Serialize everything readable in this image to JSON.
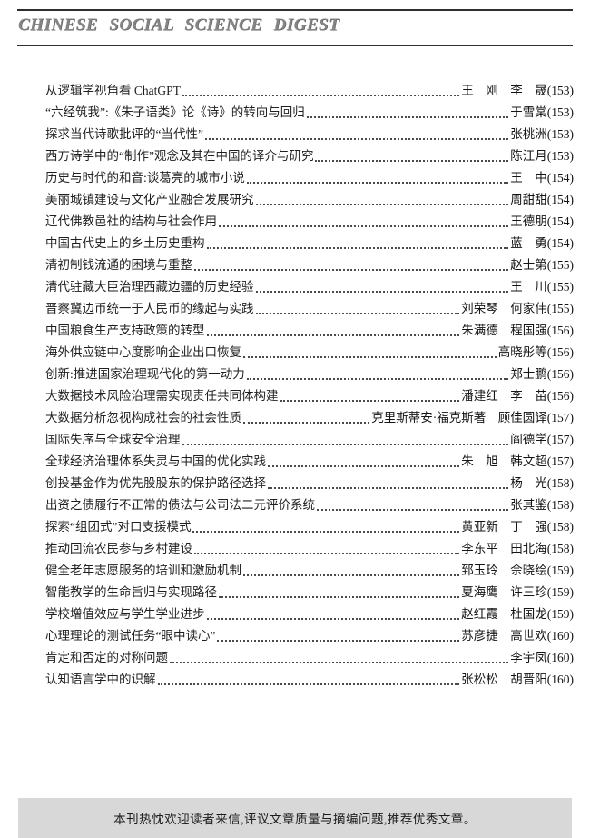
{
  "header": {
    "title": "CHINESE SOCIAL SCIENCE DIGEST"
  },
  "colors": {
    "masthead_gray": "#858585",
    "rule_dark": "#2e2e2e",
    "footer_bar_bg": "#d8d8d8",
    "text": "#1f1f1f"
  },
  "toc": {
    "entries": [
      {
        "title": "从逻辑学视角看 ChatGPT",
        "authors": "王　刚　李　晟(153)"
      },
      {
        "title": "“六经筑我”:《朱子语类》论《诗》的转向与回归",
        "authors": "于雪棠(153)"
      },
      {
        "title": "探求当代诗歌批评的“当代性”",
        "authors": "张桃洲(153)"
      },
      {
        "title": "西方诗学中的“制作”观念及其在中国的译介与研究",
        "authors": "陈江月(153)"
      },
      {
        "title": "历史与时代的和音:谈葛亮的城市小说",
        "authors": "王　中(154)"
      },
      {
        "title": "美丽城镇建设与文化产业融合发展研究",
        "authors": "周甜甜(154)"
      },
      {
        "title": "辽代佛教邑社的结构与社会作用",
        "authors": "王德朋(154)"
      },
      {
        "title": "中国古代史上的乡土历史重构",
        "authors": "蓝　勇(154)"
      },
      {
        "title": "清初制钱流通的困境与重整",
        "authors": "赵士第(155)"
      },
      {
        "title": "清代驻藏大臣治理西藏边疆的历史经验",
        "authors": "王　川(155)"
      },
      {
        "title": "晋察冀边币统一于人民币的缘起与实践",
        "authors": "刘荣琴　何家伟(155)"
      },
      {
        "title": "中国粮食生产支持政策的转型",
        "authors": "朱满德　程国强(156)"
      },
      {
        "title": "海外供应链中心度影响企业出口恢复",
        "authors": "高晓彤等(156)"
      },
      {
        "title": "创新:推进国家治理现代化的第一动力",
        "authors": "郑士鹏(156)"
      },
      {
        "title": "大数据技术风险治理需实现责任共同体构建",
        "authors": "潘建红　李　苗(156)"
      },
      {
        "title": "大数据分析忽视构成社会的社会性质",
        "authors": "克里斯蒂安·福克斯著　顾佳圆译(157)"
      },
      {
        "title": "国际失序与全球安全治理",
        "authors": "阎德学(157)"
      },
      {
        "title": "全球经济治理体系失灵与中国的优化实践",
        "authors": "朱　旭　韩文超(157)"
      },
      {
        "title": "创投基金作为优先股股东的保护路径选择",
        "authors": "杨　光(158)"
      },
      {
        "title": "出资之债履行不正常的债法与公司法二元评价系统",
        "authors": "张其鉴(158)"
      },
      {
        "title": "探索“组团式”对口支援模式",
        "authors": "黄亚新　丁　强(158)"
      },
      {
        "title": "推动回流农民参与乡村建设",
        "authors": "李东平　田北海(158)"
      },
      {
        "title": "健全老年志愿服务的培训和激励机制",
        "authors": "郅玉玲　佘晓绘(159)"
      },
      {
        "title": "智能教学的生命旨归与实现路径",
        "authors": "夏海鹰　许三珍(159)"
      },
      {
        "title": "学校增值效应与学生学业进步",
        "authors": "赵红霞　杜国龙(159)"
      },
      {
        "title": "心理理论的测试任务“眼中读心”",
        "authors": "苏彦捷　高世欢(160)"
      },
      {
        "title": "肯定和否定的对称问题",
        "authors": "李宇凤(160)"
      },
      {
        "title": "认知语言学中的识解",
        "authors": "张松松　胡晋阳(160)"
      }
    ]
  },
  "footer": {
    "notice": "本刊热忱欢迎读者来信,评议文章质量与摘编问题,推荐优秀文章。"
  }
}
